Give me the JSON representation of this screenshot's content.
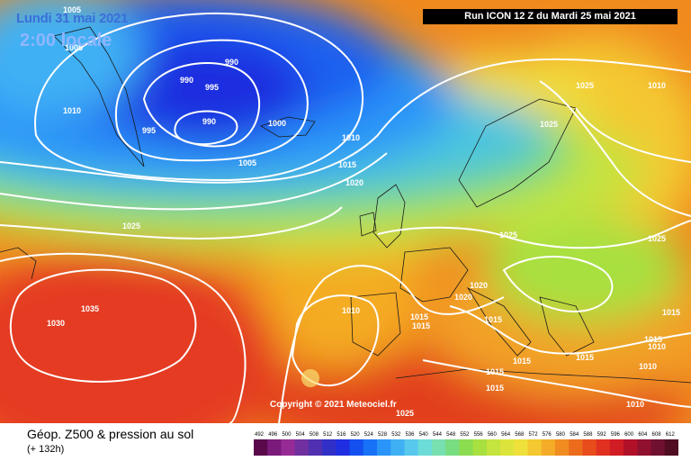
{
  "header": {
    "date_line": "Lundi 31 mai 2021",
    "time_line": "2:00 locale",
    "run_info": "Run ICON 12 Z du Mardi 25 mai 2021"
  },
  "map": {
    "copyright": "Copyright © 2021 Meteociel.fr",
    "isobar_labels": [
      "1005",
      "1005",
      "990",
      "990",
      "995",
      "995",
      "1010",
      "990",
      "1000",
      "1005",
      "1010",
      "1015",
      "1020",
      "1025",
      "1025",
      "1025",
      "1030",
      "1035",
      "1025",
      "1010",
      "1015",
      "1015",
      "1020",
      "1020",
      "1015",
      "1015",
      "1015",
      "1015",
      "1015",
      "1010",
      "1010",
      "1015",
      "1015",
      "1010",
      "1025",
      "1025",
      "1010"
    ]
  },
  "footer": {
    "title": "Géop. Z500 & pression au sol",
    "subtitle": "(+ 132h)"
  },
  "legend": {
    "ticks": [
      "492",
      "496",
      "500",
      "504",
      "508",
      "512",
      "516",
      "520",
      "524",
      "528",
      "532",
      "536",
      "540",
      "544",
      "548",
      "552",
      "556",
      "560",
      "564",
      "568",
      "572",
      "576",
      "580",
      "584",
      "588",
      "592",
      "596",
      "600",
      "604",
      "608",
      "612"
    ],
    "colors": [
      "#5a0a4a",
      "#7a1a7a",
      "#962b96",
      "#7030a0",
      "#5030b0",
      "#3030c8",
      "#1e2ee0",
      "#1450f0",
      "#1872f8",
      "#2a94f8",
      "#40b0f4",
      "#58c8ec",
      "#6cdcd8",
      "#78e0b0",
      "#78dc80",
      "#8cdc50",
      "#a8e040",
      "#c4e440",
      "#dce43c",
      "#f0e03c",
      "#f4c830",
      "#f4ac28",
      "#f08c20",
      "#ec6c1c",
      "#e84c1c",
      "#e03020",
      "#d01c24",
      "#b01028",
      "#901030",
      "#701030",
      "#500c20"
    ]
  }
}
